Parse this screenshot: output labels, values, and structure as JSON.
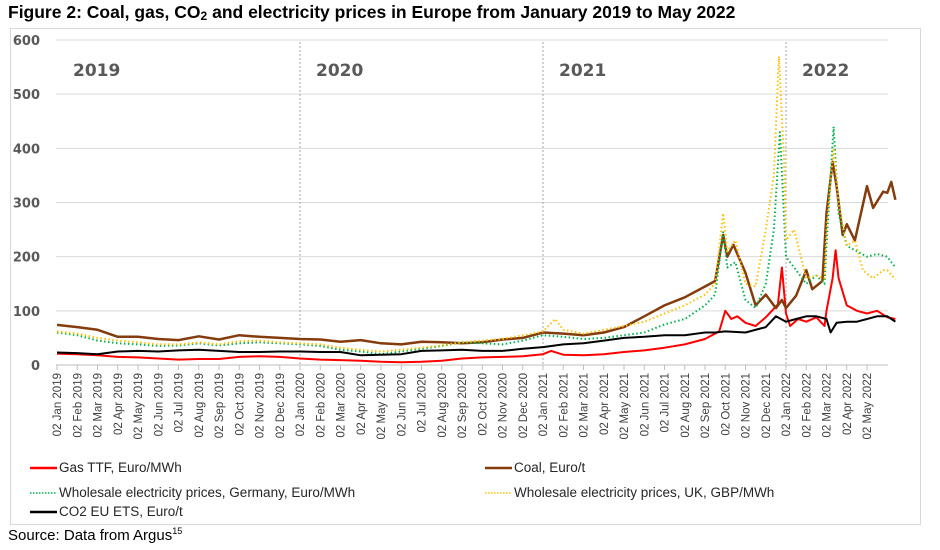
{
  "figure": {
    "title_main": "Figure 2: Coal, gas, CO",
    "title_sub": "2",
    "title_rest": " and electricity prices in Europe from January 2019 to May 2022",
    "source_text": "Source: Data from Argus",
    "source_ref": "15"
  },
  "chart_data": {
    "type": "line",
    "title": "Figure 2: Coal, gas, CO2 and electricity prices in Europe from January 2019 to May 2022",
    "xlabel": "",
    "ylabel": "",
    "ylim": [
      0,
      600
    ],
    "yticks": [
      0,
      100,
      200,
      300,
      400,
      500,
      600
    ],
    "grid": true,
    "legend_position": "bottom",
    "x_tick_labels": [
      "02 Jan 2019",
      "02 Feb 2019",
      "02 Mar 2019",
      "02 Apr 2019",
      "02 May 2019",
      "02 Jun 2019",
      "02 Jul 2019",
      "02 Aug 2019",
      "02 Sep 2019",
      "02 Oct 2019",
      "02 Nov 2019",
      "02 Dec 2019",
      "02 Jan 2020",
      "02 Feb 2020",
      "02 Mar 2020",
      "02 Apr 2020",
      "02 May 2020",
      "02 Jun 2020",
      "02 Jul 2020",
      "02 Aug 2020",
      "02 Sep 2020",
      "02 Oct 2020",
      "02 Nov 2020",
      "02 Dec 2020",
      "02 Jan 2021",
      "02 Feb 2021",
      "02 Mar 2021",
      "02 Apr 2021",
      "02 May 2021",
      "02 Jun 2021",
      "02 Jul 2021",
      "02 Aug 2021",
      "02 Sep 2021",
      "02 Oct 2021",
      "02 Nov 2021",
      "02 Dec 2021",
      "02 Jan 2022",
      "02 Feb 2022",
      "02 Mar 2022",
      "02 Apr 2022",
      "02 May 2022"
    ],
    "year_annotations": [
      {
        "label": "2019",
        "month_index": 0
      },
      {
        "label": "2020",
        "month_index": 12
      },
      {
        "label": "2021",
        "month_index": 24
      },
      {
        "label": "2022",
        "month_index": 36
      }
    ],
    "year_dividers_month_index": [
      12,
      24,
      36
    ],
    "x_unit": "months since 02 Jan 2019",
    "series": [
      {
        "name": "Gas TTF, Euro/MWh",
        "color": "#ff0000",
        "style": "solid",
        "points": [
          [
            0,
            21
          ],
          [
            1,
            20
          ],
          [
            2,
            18
          ],
          [
            3,
            15
          ],
          [
            4,
            14
          ],
          [
            5,
            12
          ],
          [
            6,
            10
          ],
          [
            7,
            11
          ],
          [
            8,
            11
          ],
          [
            9,
            15
          ],
          [
            10,
            16
          ],
          [
            11,
            15
          ],
          [
            12,
            12
          ],
          [
            13,
            10
          ],
          [
            14,
            9
          ],
          [
            15,
            8
          ],
          [
            16,
            6
          ],
          [
            17,
            5
          ],
          [
            18,
            6
          ],
          [
            19,
            8
          ],
          [
            20,
            12
          ],
          [
            21,
            14
          ],
          [
            22,
            15
          ],
          [
            23,
            16
          ],
          [
            24,
            20
          ],
          [
            24.4,
            26
          ],
          [
            25,
            19
          ],
          [
            26,
            18
          ],
          [
            27,
            20
          ],
          [
            28,
            24
          ],
          [
            29,
            27
          ],
          [
            30,
            32
          ],
          [
            31,
            38
          ],
          [
            32,
            48
          ],
          [
            32.7,
            62
          ],
          [
            33,
            100
          ],
          [
            33.3,
            85
          ],
          [
            33.6,
            90
          ],
          [
            34,
            78
          ],
          [
            34.5,
            72
          ],
          [
            35,
            88
          ],
          [
            35.6,
            112
          ],
          [
            35.8,
            180
          ],
          [
            36,
            95
          ],
          [
            36.2,
            72
          ],
          [
            36.6,
            85
          ],
          [
            37,
            80
          ],
          [
            37.5,
            88
          ],
          [
            37.9,
            72
          ],
          [
            38,
            100
          ],
          [
            38.3,
            160
          ],
          [
            38.45,
            212
          ],
          [
            38.6,
            160
          ],
          [
            39,
            110
          ],
          [
            39.5,
            100
          ],
          [
            40,
            95
          ],
          [
            40.5,
            100
          ],
          [
            41,
            88
          ],
          [
            41.4,
            85
          ]
        ]
      },
      {
        "name": "Coal, Euro/t",
        "color": "#843c0c",
        "style": "solid",
        "points": [
          [
            0,
            74
          ],
          [
            1,
            70
          ],
          [
            2,
            65
          ],
          [
            3,
            52
          ],
          [
            4,
            52
          ],
          [
            5,
            48
          ],
          [
            6,
            46
          ],
          [
            7,
            53
          ],
          [
            8,
            47
          ],
          [
            9,
            55
          ],
          [
            10,
            52
          ],
          [
            11,
            50
          ],
          [
            12,
            48
          ],
          [
            13,
            47
          ],
          [
            14,
            43
          ],
          [
            15,
            46
          ],
          [
            16,
            40
          ],
          [
            17,
            38
          ],
          [
            18,
            43
          ],
          [
            19,
            42
          ],
          [
            20,
            40
          ],
          [
            21,
            42
          ],
          [
            22,
            47
          ],
          [
            23,
            50
          ],
          [
            24,
            60
          ],
          [
            25,
            58
          ],
          [
            26,
            55
          ],
          [
            27,
            60
          ],
          [
            28,
            70
          ],
          [
            29,
            90
          ],
          [
            30,
            110
          ],
          [
            31,
            125
          ],
          [
            32,
            145
          ],
          [
            32.5,
            155
          ],
          [
            32.9,
            240
          ],
          [
            33.1,
            200
          ],
          [
            33.4,
            222
          ],
          [
            34,
            170
          ],
          [
            34.5,
            110
          ],
          [
            35,
            130
          ],
          [
            35.5,
            105
          ],
          [
            35.8,
            120
          ],
          [
            36,
            105
          ],
          [
            36.5,
            128
          ],
          [
            37,
            175
          ],
          [
            37.3,
            140
          ],
          [
            37.8,
            155
          ],
          [
            38,
            280
          ],
          [
            38.3,
            375
          ],
          [
            38.5,
            330
          ],
          [
            38.8,
            240
          ],
          [
            39,
            260
          ],
          [
            39.4,
            230
          ],
          [
            40,
            330
          ],
          [
            40.3,
            290
          ],
          [
            40.8,
            320
          ],
          [
            41,
            318
          ],
          [
            41.2,
            338
          ],
          [
            41.4,
            305
          ]
        ]
      },
      {
        "name": "Wholesale electricity prices, Germany, Euro/MWh",
        "color": "#00b050",
        "style": "dotted",
        "points": [
          [
            0,
            60
          ],
          [
            1,
            55
          ],
          [
            2,
            45
          ],
          [
            3,
            40
          ],
          [
            4,
            38
          ],
          [
            5,
            35
          ],
          [
            6,
            36
          ],
          [
            7,
            40
          ],
          [
            8,
            36
          ],
          [
            9,
            40
          ],
          [
            10,
            42
          ],
          [
            11,
            40
          ],
          [
            12,
            38
          ],
          [
            13,
            35
          ],
          [
            14,
            28
          ],
          [
            15,
            25
          ],
          [
            16,
            20
          ],
          [
            17,
            25
          ],
          [
            18,
            30
          ],
          [
            19,
            35
          ],
          [
            20,
            42
          ],
          [
            21,
            40
          ],
          [
            22,
            38
          ],
          [
            23,
            45
          ],
          [
            24,
            55
          ],
          [
            25,
            52
          ],
          [
            26,
            48
          ],
          [
            27,
            50
          ],
          [
            28,
            55
          ],
          [
            29,
            60
          ],
          [
            30,
            75
          ],
          [
            31,
            85
          ],
          [
            32,
            110
          ],
          [
            32.5,
            130
          ],
          [
            32.9,
            245
          ],
          [
            33.1,
            180
          ],
          [
            33.5,
            190
          ],
          [
            34,
            120
          ],
          [
            34.5,
            105
          ],
          [
            35,
            150
          ],
          [
            35.4,
            250
          ],
          [
            35.7,
            430
          ],
          [
            36,
            200
          ],
          [
            36.4,
            180
          ],
          [
            37,
            150
          ],
          [
            37.5,
            165
          ],
          [
            37.9,
            150
          ],
          [
            38,
            220
          ],
          [
            38.35,
            440
          ],
          [
            38.6,
            280
          ],
          [
            39,
            220
          ],
          [
            39.5,
            210
          ],
          [
            40,
            200
          ],
          [
            40.5,
            205
          ],
          [
            41,
            200
          ],
          [
            41.4,
            180
          ]
        ]
      },
      {
        "name": "Wholesale electricity prices, UK, GBP/MWh",
        "color": "#ffc000",
        "style": "dotted",
        "points": [
          [
            0,
            62
          ],
          [
            1,
            58
          ],
          [
            2,
            50
          ],
          [
            3,
            45
          ],
          [
            4,
            42
          ],
          [
            5,
            38
          ],
          [
            6,
            38
          ],
          [
            7,
            42
          ],
          [
            8,
            38
          ],
          [
            9,
            44
          ],
          [
            10,
            45
          ],
          [
            11,
            42
          ],
          [
            12,
            40
          ],
          [
            13,
            38
          ],
          [
            14,
            32
          ],
          [
            15,
            28
          ],
          [
            16,
            25
          ],
          [
            17,
            28
          ],
          [
            18,
            32
          ],
          [
            19,
            36
          ],
          [
            20,
            42
          ],
          [
            21,
            45
          ],
          [
            22,
            48
          ],
          [
            23,
            55
          ],
          [
            24,
            62
          ],
          [
            24.6,
            85
          ],
          [
            25,
            65
          ],
          [
            26,
            58
          ],
          [
            27,
            65
          ],
          [
            28,
            72
          ],
          [
            29,
            80
          ],
          [
            30,
            95
          ],
          [
            31,
            110
          ],
          [
            32,
            130
          ],
          [
            32.5,
            150
          ],
          [
            32.9,
            280
          ],
          [
            33.1,
            210
          ],
          [
            33.5,
            230
          ],
          [
            34,
            150
          ],
          [
            34.5,
            145
          ],
          [
            35,
            250
          ],
          [
            35.4,
            350
          ],
          [
            35.65,
            570
          ],
          [
            35.9,
            380
          ],
          [
            36,
            230
          ],
          [
            36.4,
            250
          ],
          [
            37,
            160
          ],
          [
            37.5,
            165
          ],
          [
            37.9,
            160
          ],
          [
            38,
            250
          ],
          [
            38.35,
            400
          ],
          [
            38.6,
            300
          ],
          [
            39,
            220
          ],
          [
            39.4,
            230
          ],
          [
            39.8,
            175
          ],
          [
            40.3,
            160
          ],
          [
            40.8,
            175
          ],
          [
            41,
            175
          ],
          [
            41.4,
            158
          ]
        ]
      },
      {
        "name": "CO2 EU ETS, Euro/t",
        "color": "#000000",
        "style": "solid",
        "points": [
          [
            0,
            23
          ],
          [
            1,
            22
          ],
          [
            2,
            20
          ],
          [
            3,
            25
          ],
          [
            4,
            26
          ],
          [
            5,
            25
          ],
          [
            6,
            27
          ],
          [
            7,
            28
          ],
          [
            8,
            26
          ],
          [
            9,
            24
          ],
          [
            10,
            24
          ],
          [
            11,
            25
          ],
          [
            12,
            25
          ],
          [
            13,
            24
          ],
          [
            14,
            24
          ],
          [
            15,
            18
          ],
          [
            16,
            19
          ],
          [
            17,
            20
          ],
          [
            18,
            26
          ],
          [
            19,
            27
          ],
          [
            20,
            28
          ],
          [
            21,
            26
          ],
          [
            22,
            26
          ],
          [
            23,
            30
          ],
          [
            24,
            33
          ],
          [
            25,
            38
          ],
          [
            26,
            40
          ],
          [
            27,
            45
          ],
          [
            28,
            50
          ],
          [
            29,
            52
          ],
          [
            30,
            55
          ],
          [
            31,
            55
          ],
          [
            32,
            60
          ],
          [
            32.5,
            60
          ],
          [
            33,
            62
          ],
          [
            34,
            60
          ],
          [
            35,
            70
          ],
          [
            35.5,
            90
          ],
          [
            36,
            80
          ],
          [
            36.5,
            85
          ],
          [
            37,
            90
          ],
          [
            37.5,
            90
          ],
          [
            38,
            85
          ],
          [
            38.2,
            60
          ],
          [
            38.5,
            78
          ],
          [
            39,
            80
          ],
          [
            39.5,
            80
          ],
          [
            40,
            85
          ],
          [
            40.5,
            90
          ],
          [
            41,
            90
          ],
          [
            41.4,
            80
          ]
        ]
      }
    ]
  },
  "legend": {
    "items": [
      {
        "label": "Gas TTF, Euro/MWh",
        "color": "#ff0000",
        "style": "solid"
      },
      {
        "label": "Coal, Euro/t",
        "color": "#843c0c",
        "style": "solid"
      },
      {
        "label": "Wholesale electricity prices, Germany, Euro/MWh",
        "color": "#00b050",
        "style": "dotted"
      },
      {
        "label": "Wholesale electricity prices, UK, GBP/MWh",
        "color": "#ffc000",
        "style": "dotted"
      },
      {
        "label": "CO2 EU ETS, Euro/t",
        "color": "#000000",
        "style": "solid"
      }
    ]
  }
}
